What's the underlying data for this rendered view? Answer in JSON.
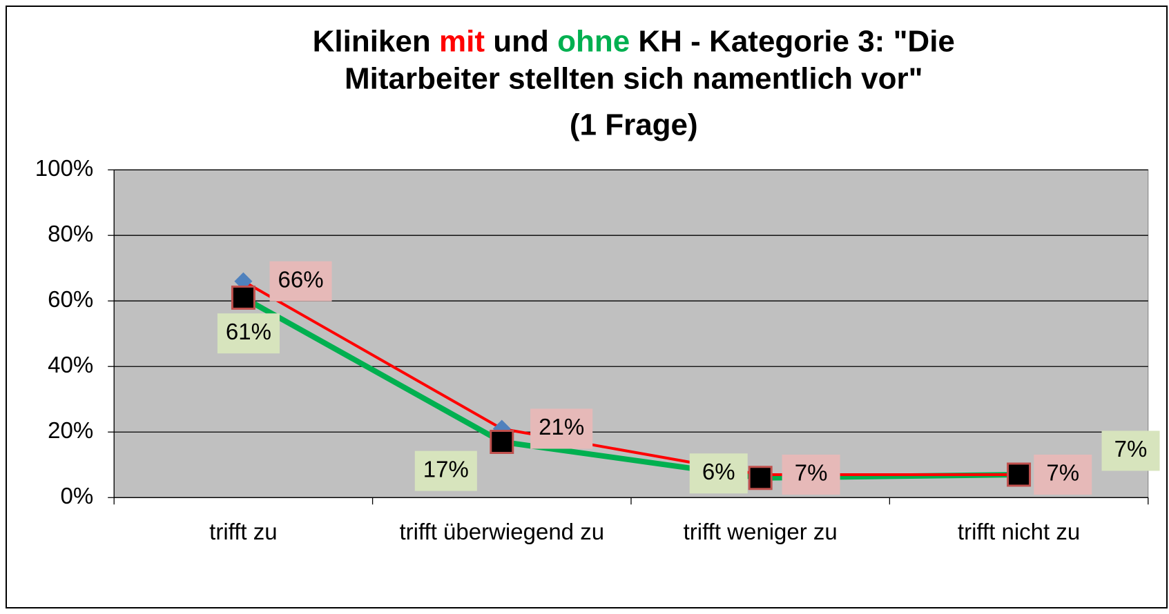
{
  "chart_data": {
    "type": "line",
    "title_lines": [
      [
        {
          "text": "Kliniken ",
          "color": "#000000"
        },
        {
          "text": "mit",
          "color": "#ff0000"
        },
        {
          "text": " und ",
          "color": "#000000"
        },
        {
          "text": "ohne",
          "color": "#00b050"
        },
        {
          "text": " KH - Kategorie 3: \"Die",
          "color": "#000000"
        }
      ],
      [
        {
          "text": "Mitarbeiter stellten sich namentlich vor\"",
          "color": "#000000"
        }
      ],
      [
        {
          "text": "(1 Frage)",
          "color": "#000000"
        }
      ]
    ],
    "categories": [
      "trifft zu",
      "trifft überwiegend zu",
      "trifft weniger zu",
      "trifft nicht zu"
    ],
    "series": [
      {
        "color": "#ff0000",
        "marker_color": "#4f81bd",
        "label_bg": "#e6b9b8",
        "values": [
          66,
          21,
          7,
          7
        ],
        "value_labels": [
          "66%",
          "21%",
          "7%",
          "7%"
        ]
      },
      {
        "color": "#00b050",
        "marker_color": "#000000",
        "label_bg": "#d7e4bd",
        "values": [
          61,
          17,
          6,
          7
        ],
        "value_labels": [
          "61%",
          "17%",
          "6%",
          "7%"
        ]
      }
    ],
    "ylim": [
      0,
      100
    ],
    "yticks": [
      {
        "value": 0,
        "label": "0%"
      },
      {
        "value": 20,
        "label": "20%"
      },
      {
        "value": 40,
        "label": "40%"
      },
      {
        "value": 60,
        "label": "60%"
      },
      {
        "value": 80,
        "label": "80%"
      },
      {
        "value": 100,
        "label": "100%"
      }
    ],
    "grid": true,
    "plot_bg": "#c0c0c0"
  }
}
